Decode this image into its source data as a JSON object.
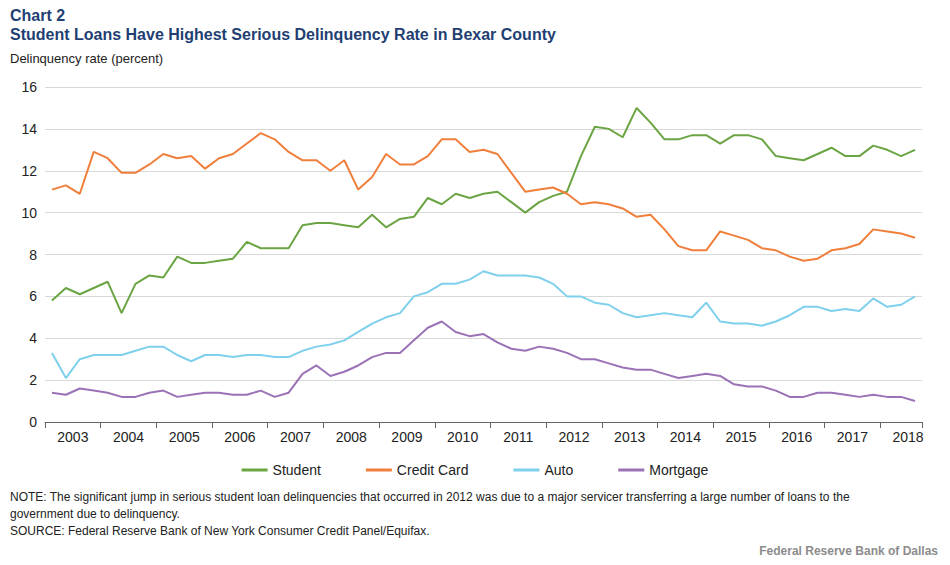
{
  "chart_data": {
    "type": "line",
    "title": "Chart 2",
    "subtitle": "Student Loans Have Highest Serious Delinquency Rate in Bexar County",
    "ylabel": "Delinquency rate (percent)",
    "annotations": [
      "NOTE: The significant jump in serious student loan delinquencies that occurred in 2012 was due to a major servicer transferring a large number of loans to the government due to delinquency.",
      "SOURCE: Federal Reserve Bank of New York Consumer Credit Panel/Equifax.",
      "Federal Reserve Bank of Dallas"
    ],
    "categories": [
      null,
      "2003",
      null,
      null,
      null,
      "2004",
      null,
      null,
      null,
      "2005",
      null,
      null,
      null,
      "2006",
      null,
      null,
      null,
      "2007",
      null,
      null,
      null,
      "2008",
      null,
      null,
      null,
      "2009",
      null,
      null,
      null,
      "2010",
      null,
      null,
      null,
      "2011",
      null,
      null,
      null,
      "2012",
      null,
      null,
      null,
      "2013",
      null,
      null,
      null,
      "2014",
      null,
      null,
      null,
      "2015",
      null,
      null,
      null,
      "2016",
      null,
      null,
      null,
      "2017",
      null,
      null,
      null,
      "2018",
      null
    ],
    "series": [
      {
        "name": "Student",
        "color": "#6ba543",
        "values": [
          5.8,
          6.4,
          6.1,
          6.4,
          6.7,
          5.2,
          6.6,
          7.0,
          6.9,
          7.9,
          7.6,
          7.6,
          7.7,
          7.8,
          8.6,
          8.3,
          8.3,
          8.3,
          9.4,
          9.5,
          9.5,
          9.4,
          9.3,
          9.9,
          9.3,
          9.7,
          9.8,
          10.7,
          10.4,
          10.9,
          10.7,
          10.9,
          11.0,
          10.5,
          10.0,
          10.5,
          10.8,
          11.0,
          12.7,
          14.1,
          14.0,
          13.6,
          15.0,
          14.3,
          13.5,
          13.5,
          13.7,
          13.7,
          13.3,
          13.7,
          13.7,
          13.5,
          12.7,
          12.6,
          12.5,
          12.8,
          13.1,
          12.7,
          12.7,
          13.2,
          13.0,
          12.7,
          13.0
        ]
      },
      {
        "name": "Credit Card",
        "color": "#f07f3c",
        "values": [
          11.1,
          11.3,
          10.9,
          12.9,
          12.6,
          11.9,
          11.9,
          12.3,
          12.8,
          12.6,
          12.7,
          12.1,
          12.6,
          12.8,
          13.3,
          13.8,
          13.5,
          12.9,
          12.5,
          12.5,
          12.0,
          12.5,
          11.1,
          11.7,
          12.8,
          12.3,
          12.3,
          12.7,
          13.5,
          13.5,
          12.9,
          13.0,
          12.8,
          11.9,
          11.0,
          11.1,
          11.2,
          10.9,
          10.4,
          10.5,
          10.4,
          10.2,
          9.8,
          9.9,
          9.2,
          8.4,
          8.2,
          8.2,
          9.1,
          8.9,
          8.7,
          8.3,
          8.2,
          7.9,
          7.7,
          7.8,
          8.2,
          8.3,
          8.5,
          9.2,
          9.1,
          9.0,
          8.8
        ]
      },
      {
        "name": "Auto",
        "color": "#7fd0ec",
        "values": [
          3.3,
          2.1,
          3.0,
          3.2,
          3.2,
          3.2,
          3.4,
          3.6,
          3.6,
          3.2,
          2.9,
          3.2,
          3.2,
          3.1,
          3.2,
          3.2,
          3.1,
          3.1,
          3.4,
          3.6,
          3.7,
          3.9,
          4.3,
          4.7,
          5.0,
          5.2,
          6.0,
          6.2,
          6.6,
          6.6,
          6.8,
          7.2,
          7.0,
          7.0,
          7.0,
          6.9,
          6.6,
          6.0,
          6.0,
          5.7,
          5.6,
          5.2,
          5.0,
          5.1,
          5.2,
          5.1,
          5.0,
          5.7,
          4.8,
          4.7,
          4.7,
          4.6,
          4.8,
          5.1,
          5.5,
          5.5,
          5.3,
          5.4,
          5.3,
          5.9,
          5.5,
          5.6,
          6.0
        ]
      },
      {
        "name": "Mortgage",
        "color": "#9b72b6",
        "values": [
          1.4,
          1.3,
          1.6,
          1.5,
          1.4,
          1.2,
          1.2,
          1.4,
          1.5,
          1.2,
          1.3,
          1.4,
          1.4,
          1.3,
          1.3,
          1.5,
          1.2,
          1.4,
          2.3,
          2.7,
          2.2,
          2.4,
          2.7,
          3.1,
          3.3,
          3.3,
          3.9,
          4.5,
          4.8,
          4.3,
          4.1,
          4.2,
          3.8,
          3.5,
          3.4,
          3.6,
          3.5,
          3.3,
          3.0,
          3.0,
          2.8,
          2.6,
          2.5,
          2.5,
          2.3,
          2.1,
          2.2,
          2.3,
          2.2,
          1.8,
          1.7,
          1.7,
          1.5,
          1.2,
          1.2,
          1.4,
          1.4,
          1.3,
          1.2,
          1.3,
          1.2,
          1.2,
          1.0
        ]
      }
    ],
    "ylim": [
      0,
      16
    ],
    "yticks": [
      0,
      2,
      4,
      6,
      8,
      10,
      12,
      14,
      16
    ],
    "grid": true,
    "legend": "bottom"
  }
}
